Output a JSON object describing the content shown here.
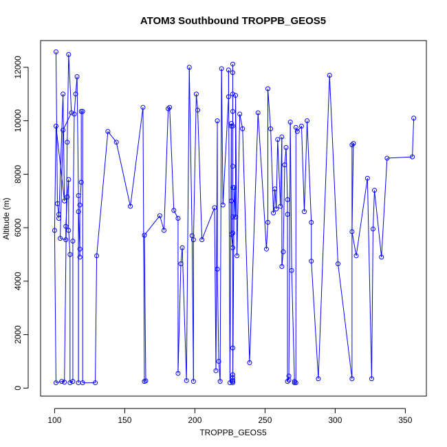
{
  "chart_data": {
    "type": "line",
    "title": "ATOM3 Southbound TROPPB_GEOS5",
    "xlabel": "TROPPB_GEOS5",
    "ylabel": "Altitude (m)",
    "xlim": [
      90,
      365
    ],
    "ylim": [
      -300,
      13000
    ],
    "x_ticks": [
      100,
      150,
      200,
      250,
      300,
      350
    ],
    "y_ticks": [
      0,
      2000,
      4000,
      6000,
      8000,
      10000,
      12000
    ],
    "grid": false,
    "series": [
      {
        "color": "#0000ff",
        "marker": "open-circle",
        "points": [
          [
            101,
            12580
          ],
          [
            102,
            6900
          ],
          [
            103,
            6500
          ],
          [
            103,
            6350
          ],
          [
            106,
            11000
          ],
          [
            107,
            7000
          ],
          [
            101,
            9800
          ],
          [
            100,
            5900
          ],
          [
            101,
            200
          ],
          [
            105,
            250
          ],
          [
            107,
            220
          ],
          [
            109,
            9200
          ],
          [
            110,
            12480
          ],
          [
            112,
            10300
          ],
          [
            106,
            9650
          ],
          [
            104,
            5600
          ],
          [
            108,
            5550
          ],
          [
            108,
            6050
          ],
          [
            109,
            7150
          ],
          [
            110,
            7800
          ],
          [
            110,
            5900
          ],
          [
            111,
            5000
          ],
          [
            111,
            200
          ],
          [
            113,
            250
          ],
          [
            113,
            5500
          ],
          [
            114,
            10250
          ],
          [
            115,
            11000
          ],
          [
            116,
            11650
          ],
          [
            117,
            7200
          ],
          [
            117,
            200
          ],
          [
            117,
            6600
          ],
          [
            118,
            5200
          ],
          [
            118,
            4900
          ],
          [
            118,
            6850
          ],
          [
            119,
            7700
          ],
          [
            119,
            10350
          ],
          [
            120,
            10350
          ],
          [
            120,
            200
          ],
          [
            129,
            200
          ],
          [
            130,
            4950
          ],
          [
            138,
            9600
          ],
          [
            144,
            9200
          ],
          [
            154,
            6800
          ],
          [
            163,
            10500
          ],
          [
            164,
            250
          ],
          [
            165,
            270
          ],
          [
            164,
            5720
          ],
          [
            175,
            6450
          ],
          [
            178,
            5900
          ],
          [
            181,
            10450
          ],
          [
            182,
            10500
          ],
          [
            185,
            6650
          ],
          [
            188,
            6350
          ],
          [
            188,
            550
          ],
          [
            190,
            4650
          ],
          [
            191,
            5250
          ],
          [
            194,
            280
          ],
          [
            196,
            12000
          ],
          [
            198,
            5700
          ],
          [
            199,
            250
          ],
          [
            199,
            5550
          ],
          [
            201,
            11000
          ],
          [
            202,
            10400
          ],
          [
            205,
            5550
          ],
          [
            214,
            6750
          ],
          [
            215,
            650
          ],
          [
            216,
            10000
          ],
          [
            216,
            4450
          ],
          [
            217,
            1000
          ],
          [
            218,
            250
          ],
          [
            219,
            11950
          ],
          [
            220,
            6850
          ],
          [
            224,
            10900
          ],
          [
            224,
            11900
          ],
          [
            225,
            200
          ],
          [
            226,
            9900
          ],
          [
            226,
            9800
          ],
          [
            226,
            7000
          ],
          [
            226,
            5750
          ],
          [
            227,
            5250
          ],
          [
            227,
            12120
          ],
          [
            227,
            11800
          ],
          [
            227,
            11000
          ],
          [
            227,
            10350
          ],
          [
            227,
            9800
          ],
          [
            227,
            8300
          ],
          [
            227,
            7500
          ],
          [
            227,
            6400
          ],
          [
            227,
            5800
          ],
          [
            227,
            1500
          ],
          [
            227,
            500
          ],
          [
            227,
            400
          ],
          [
            227,
            300
          ],
          [
            227,
            250
          ],
          [
            227,
            200
          ],
          [
            228,
            7500
          ],
          [
            229,
            6400
          ],
          [
            229,
            10950
          ],
          [
            230,
            4950
          ],
          [
            232,
            10250
          ],
          [
            234,
            9700
          ],
          [
            239,
            950
          ],
          [
            245,
            10300
          ],
          [
            251,
            5200
          ],
          [
            252,
            6200
          ],
          [
            252,
            11200
          ],
          [
            254,
            9700
          ],
          [
            256,
            6550
          ],
          [
            257,
            7450
          ],
          [
            258,
            6700
          ],
          [
            259,
            9300
          ],
          [
            261,
            6800
          ],
          [
            262,
            9400
          ],
          [
            262,
            4550
          ],
          [
            263,
            5100
          ],
          [
            264,
            8350
          ],
          [
            265,
            9000
          ],
          [
            266,
            7050
          ],
          [
            266,
            6500
          ],
          [
            266,
            250
          ],
          [
            267,
            450
          ],
          [
            267,
            300
          ],
          [
            268,
            9950
          ],
          [
            269,
            4400
          ],
          [
            271,
            250
          ],
          [
            271,
            200
          ],
          [
            272,
            200
          ],
          [
            272,
            9750
          ],
          [
            273,
            9600
          ],
          [
            276,
            9800
          ],
          [
            278,
            6600
          ],
          [
            280,
            10000
          ],
          [
            283,
            6200
          ],
          [
            283,
            4750
          ],
          [
            288,
            350
          ],
          [
            296,
            11700
          ],
          [
            302,
            4650
          ],
          [
            312,
            350
          ],
          [
            312,
            9100
          ],
          [
            313,
            9150
          ],
          [
            312,
            5850
          ],
          [
            315,
            4950
          ],
          [
            323,
            7850
          ],
          [
            326,
            350
          ],
          [
            327,
            5950
          ],
          [
            328,
            7400
          ],
          [
            333,
            4900
          ],
          [
            337,
            8600
          ],
          [
            355,
            8650
          ],
          [
            356,
            10100
          ]
        ]
      }
    ]
  }
}
